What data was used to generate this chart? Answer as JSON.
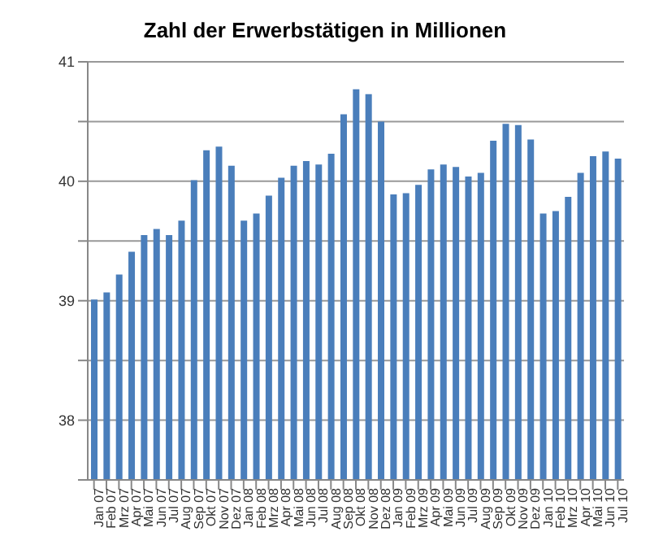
{
  "chart_data": {
    "type": "bar",
    "title": "Zahl der Erwerbstätigen in Millionen",
    "categories": [
      "Jan 07",
      "Feb 07",
      "Mrz 07",
      "Apr 07",
      "Mai 07",
      "Jun 07",
      "Jul 07",
      "Aug 07",
      "Sep 07",
      "Okt 07",
      "Nov 07",
      "Dez 07",
      "Jan 08",
      "Feb 08",
      "Mrz 08",
      "Apr 08",
      "Mai 08",
      "Jun 08",
      "Jul 08",
      "Aug 08",
      "Sep 08",
      "Okt 08",
      "Nov 08",
      "Dez 08",
      "Jan 09",
      "Feb 09",
      "Mrz 09",
      "Apr 09",
      "Mai 09",
      "Jun 09",
      "Jul 09",
      "Aug 09",
      "Sep 09",
      "Okt 09",
      "Nov 09",
      "Dez 09",
      "Jan 10",
      "Feb 10",
      "Mrz 10",
      "Apr 10",
      "Mai 10",
      "Jun 10",
      "Jul 10"
    ],
    "values": [
      39.01,
      39.07,
      39.22,
      39.41,
      39.55,
      39.6,
      39.55,
      39.67,
      40.01,
      40.26,
      40.29,
      40.13,
      39.67,
      39.73,
      39.88,
      40.03,
      40.13,
      40.17,
      40.14,
      40.23,
      40.56,
      40.77,
      40.73,
      40.5,
      39.89,
      39.9,
      39.97,
      40.1,
      40.14,
      40.12,
      40.04,
      40.07,
      40.34,
      40.48,
      40.47,
      40.35,
      39.73,
      39.75,
      39.87,
      40.07,
      40.21,
      40.25,
      40.19
    ],
    "color": "#4a7ebb",
    "ylim": [
      37.5,
      41
    ],
    "yticks": [
      {
        "value": 37.5,
        "label": null
      },
      38,
      {
        "value": 38.5,
        "label": null
      },
      39,
      {
        "value": 39.5,
        "label": null
      },
      40,
      {
        "value": 40.5,
        "label": null
      },
      41
    ],
    "grid": "y"
  }
}
